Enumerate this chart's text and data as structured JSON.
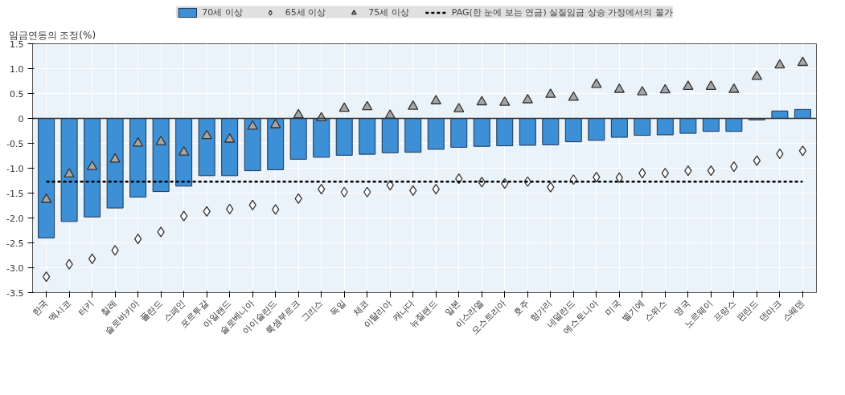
{
  "chart_data": {
    "type": "bar",
    "ylabel": "임금연동의 조정(%)",
    "categories": [
      "한국",
      "멕시코",
      "터키",
      "칠레",
      "슬로바키아",
      "폴란드",
      "스페인",
      "포르투갈",
      "아일랜드",
      "슬로베니아",
      "아이슬란드",
      "룩셈부르크",
      "그리스",
      "독일",
      "체코",
      "이탈리아",
      "캐나다",
      "뉴질랜드",
      "일본",
      "이스라엘",
      "오스트리아",
      "호주",
      "헝가리",
      "네덜란드",
      "에스토니아",
      "미국",
      "벨기에",
      "스위스",
      "영국",
      "노르웨이",
      "프랑스",
      "핀란드",
      "덴마크",
      "스웨덴"
    ],
    "series": [
      {
        "name": "70세 이상",
        "type": "bar",
        "color": "#3d8fd6",
        "values": [
          -2.4,
          -2.07,
          -1.98,
          -1.8,
          -1.58,
          -1.47,
          -1.36,
          -1.15,
          -1.15,
          -1.05,
          -1.03,
          -0.82,
          -0.78,
          -0.74,
          -0.72,
          -0.69,
          -0.68,
          -0.62,
          -0.58,
          -0.56,
          -0.55,
          -0.54,
          -0.53,
          -0.47,
          -0.44,
          -0.38,
          -0.34,
          -0.33,
          -0.3,
          -0.26,
          -0.26,
          -0.03,
          0.15,
          0.18
        ]
      },
      {
        "name": "65세 이상",
        "type": "scatter",
        "marker": "diamond",
        "color": "#ffffff",
        "values": [
          -3.18,
          -2.93,
          -2.82,
          -2.65,
          -2.42,
          -2.28,
          -1.96,
          -1.87,
          -1.82,
          -1.74,
          -1.83,
          -1.61,
          -1.42,
          -1.48,
          -1.48,
          -1.34,
          -1.45,
          -1.42,
          -1.21,
          -1.28,
          -1.31,
          -1.27,
          -1.38,
          -1.23,
          -1.18,
          -1.19,
          -1.1,
          -1.1,
          -1.05,
          -1.05,
          -0.97,
          -0.85,
          -0.71,
          -0.65
        ]
      },
      {
        "name": "75세 이상",
        "type": "scatter",
        "marker": "triangle",
        "color": "#a6a6a6",
        "values": [
          -1.63,
          -1.12,
          -0.97,
          -0.82,
          -0.5,
          -0.47,
          -0.68,
          -0.35,
          -0.42,
          -0.16,
          -0.13,
          0.07,
          0.01,
          0.2,
          0.23,
          0.06,
          0.24,
          0.35,
          0.19,
          0.33,
          0.32,
          0.37,
          0.48,
          0.42,
          0.68,
          0.58,
          0.53,
          0.57,
          0.64,
          0.64,
          0.58,
          0.84,
          1.07,
          1.12
        ]
      }
    ],
    "ref_lines": [
      {
        "axis": "y",
        "value": -1.27,
        "label": "PAG(한 눈에 보는 연금) 실질임금 상승 가정에서의 물가",
        "color": "#000000",
        "line_style": "dashed"
      }
    ],
    "ylim": [
      -3.5,
      1.5
    ],
    "yticks": [
      -3.5,
      {
        "value": -3,
        "label": "-3.0"
      },
      -2.5,
      {
        "value": -2,
        "label": "-2.0"
      },
      -1.5,
      {
        "value": -1,
        "label": "-1.0"
      },
      -0.5,
      0,
      0.5,
      {
        "value": 1,
        "label": "1.0"
      },
      1.5
    ],
    "grid": true,
    "legend": "top"
  }
}
